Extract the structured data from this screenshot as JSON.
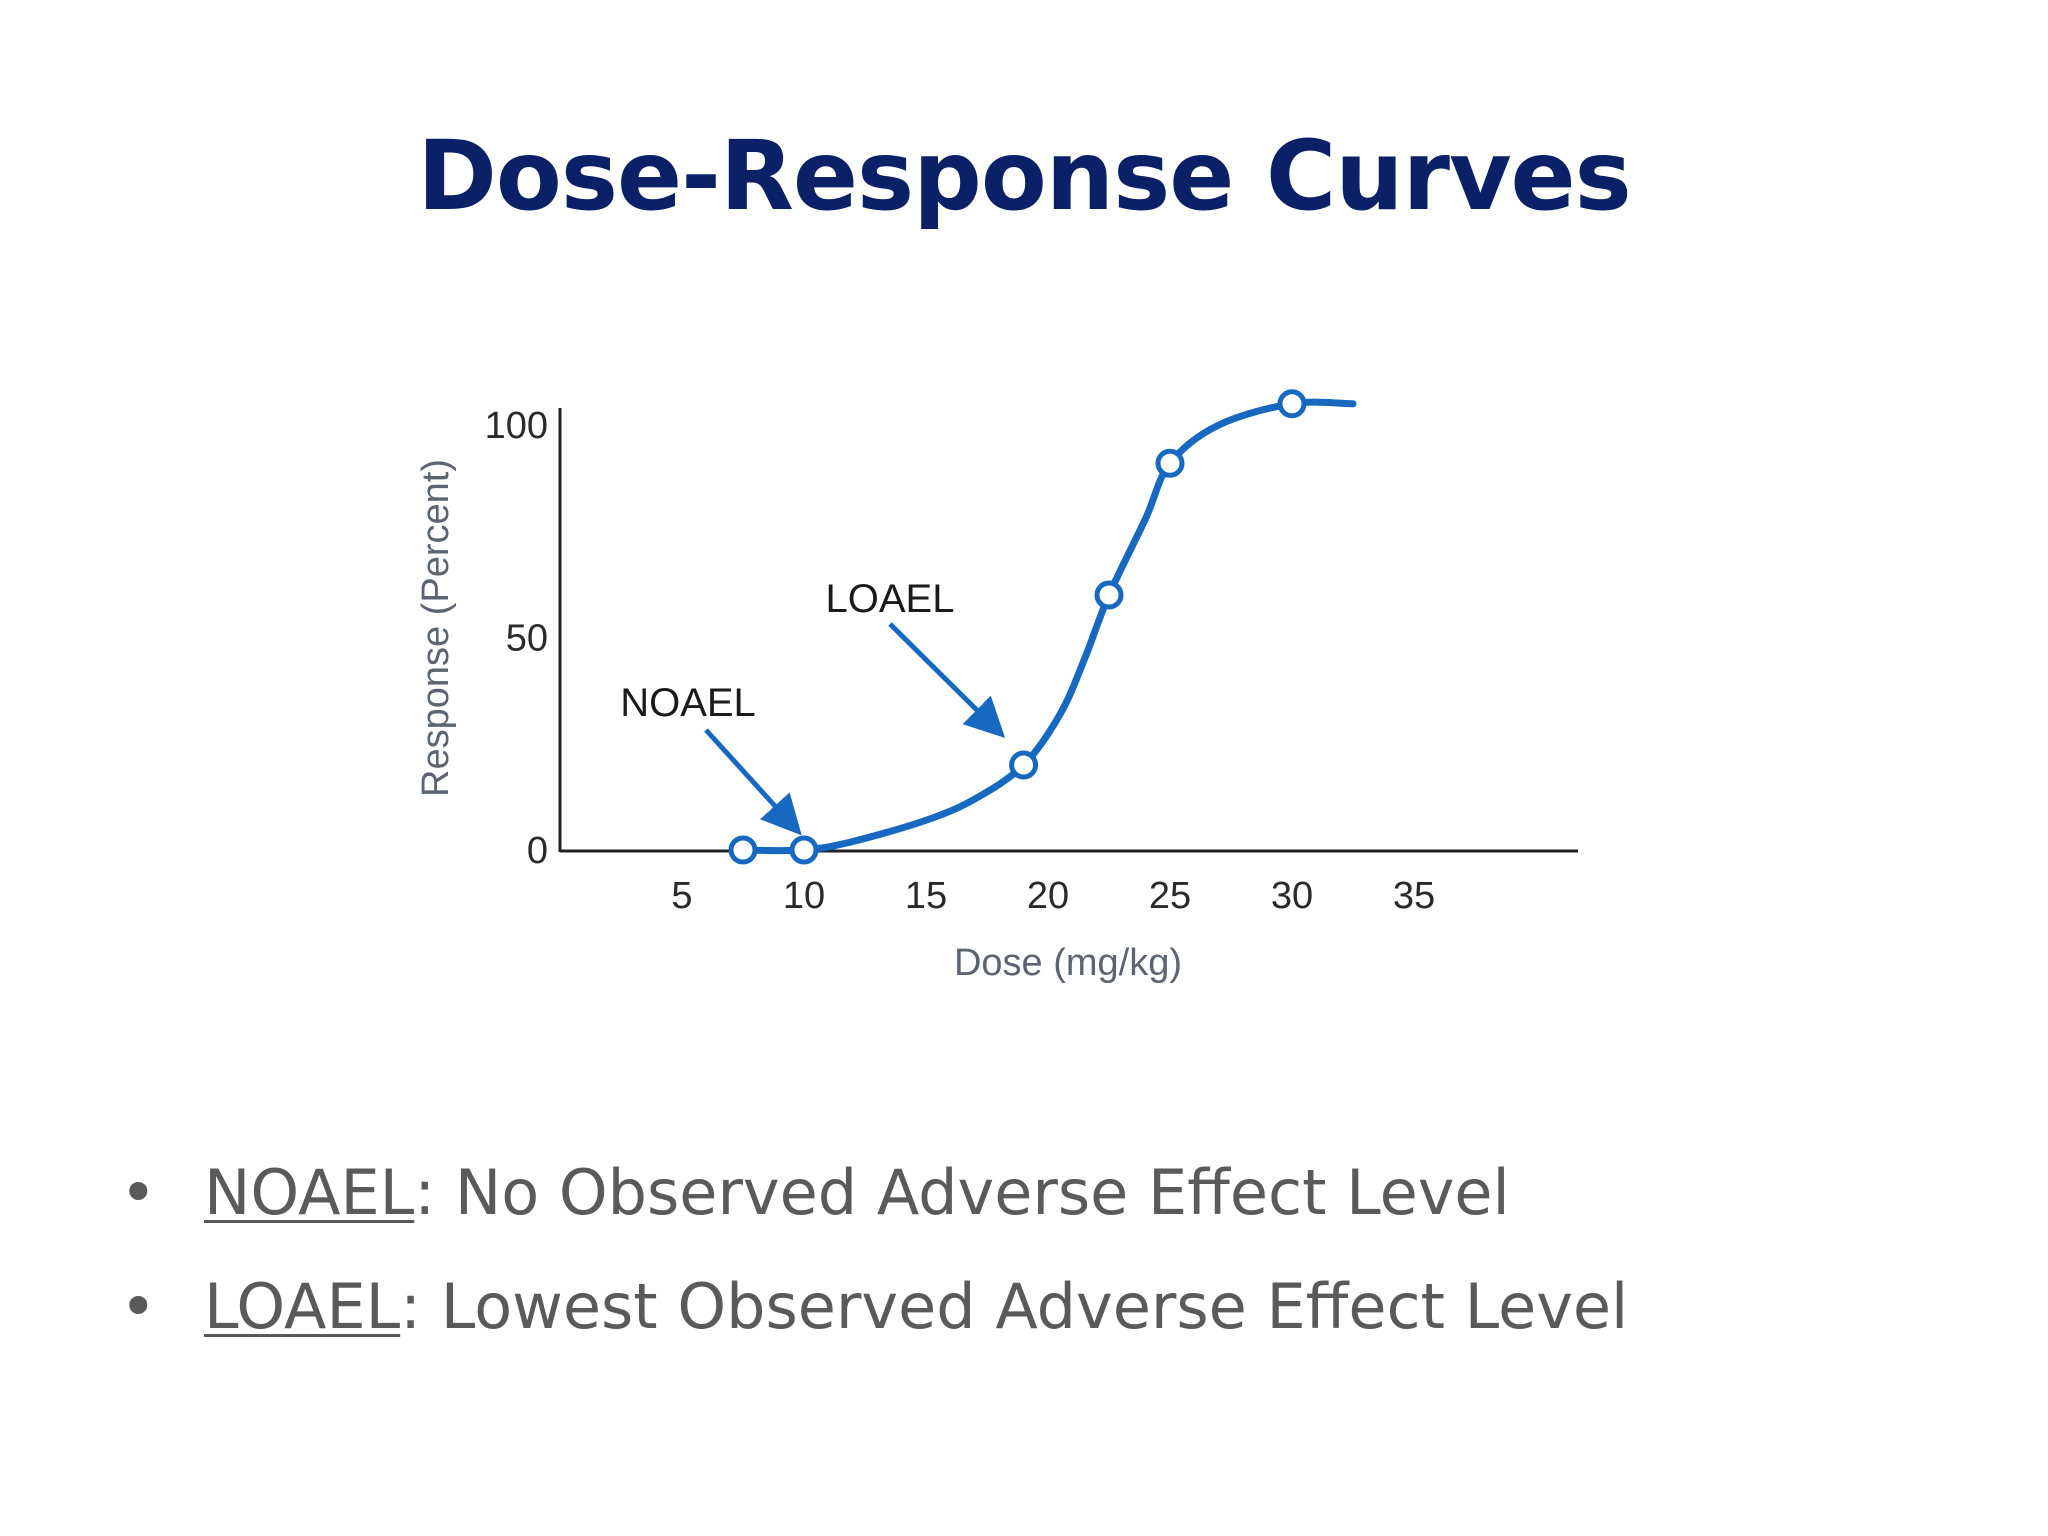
{
  "slide": {
    "title": "Dose-Response Curves"
  },
  "chart_data": {
    "type": "line",
    "xlabel": "Dose (mg/kg)",
    "ylabel": "Response (Percent)",
    "xlim": [
      0,
      42
    ],
    "ylim": [
      0,
      100
    ],
    "xticks": [
      "5",
      "10",
      "15",
      "20",
      "25",
      "30",
      "35"
    ],
    "yticks": [
      "0",
      "50",
      "100"
    ],
    "points": [
      {
        "x": 7.5,
        "y": 0
      },
      {
        "x": 10,
        "y": 0
      },
      {
        "x": 19,
        "y": 20
      },
      {
        "x": 22.5,
        "y": 60
      },
      {
        "x": 25,
        "y": 91
      },
      {
        "x": 30,
        "y": 105
      }
    ],
    "curve": [
      {
        "x": 7.5,
        "y": 0
      },
      {
        "x": 10,
        "y": 0
      },
      {
        "x": 12,
        "y": 2
      },
      {
        "x": 15,
        "y": 7
      },
      {
        "x": 17,
        "y": 12
      },
      {
        "x": 19,
        "y": 20
      },
      {
        "x": 20.5,
        "y": 32
      },
      {
        "x": 21.5,
        "y": 45
      },
      {
        "x": 22.5,
        "y": 60
      },
      {
        "x": 24,
        "y": 78
      },
      {
        "x": 25,
        "y": 91
      },
      {
        "x": 27,
        "y": 100
      },
      {
        "x": 30,
        "y": 105
      },
      {
        "x": 32.5,
        "y": 105
      }
    ],
    "annotations": [
      {
        "label": "NOAEL",
        "target_x": 10,
        "target_y": 0
      },
      {
        "label": "LOAEL",
        "target_x": 19,
        "target_y": 20
      }
    ],
    "colors": {
      "curve": "#1668c1",
      "axis": "#222222",
      "tick_text": "#2a2a2a",
      "axis_label": "#5b6470"
    },
    "grid": false,
    "legend": "none"
  },
  "bullets": [
    {
      "term": "NOAEL",
      "definition": ": No Observed Adverse Effect Level"
    },
    {
      "term": "LOAEL",
      "definition": ": Lowest Observed Adverse Effect Level"
    }
  ]
}
